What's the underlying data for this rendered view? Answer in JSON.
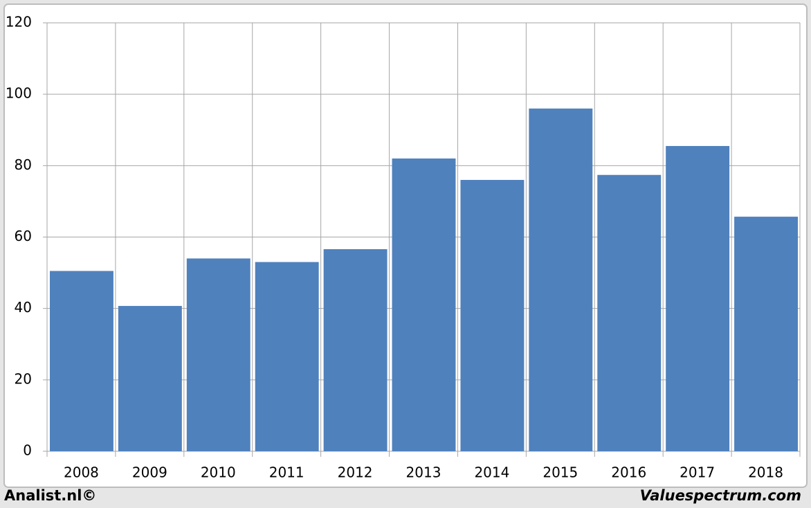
{
  "chart_data": {
    "type": "bar",
    "categories": [
      "2008",
      "2009",
      "2010",
      "2011",
      "2012",
      "2013",
      "2014",
      "2015",
      "2016",
      "2017",
      "2018"
    ],
    "values": [
      50.5,
      40.7,
      54,
      53,
      56.6,
      82,
      76,
      96,
      77.4,
      85.5,
      65.7
    ],
    "color": "#4f81bd",
    "ylim": [
      0,
      120
    ],
    "yticks": [
      0,
      20,
      40,
      60,
      80,
      100,
      120
    ],
    "grid": true
  },
  "footer": {
    "left": "Analist.nl©",
    "right": "Valuespectrum.com"
  }
}
